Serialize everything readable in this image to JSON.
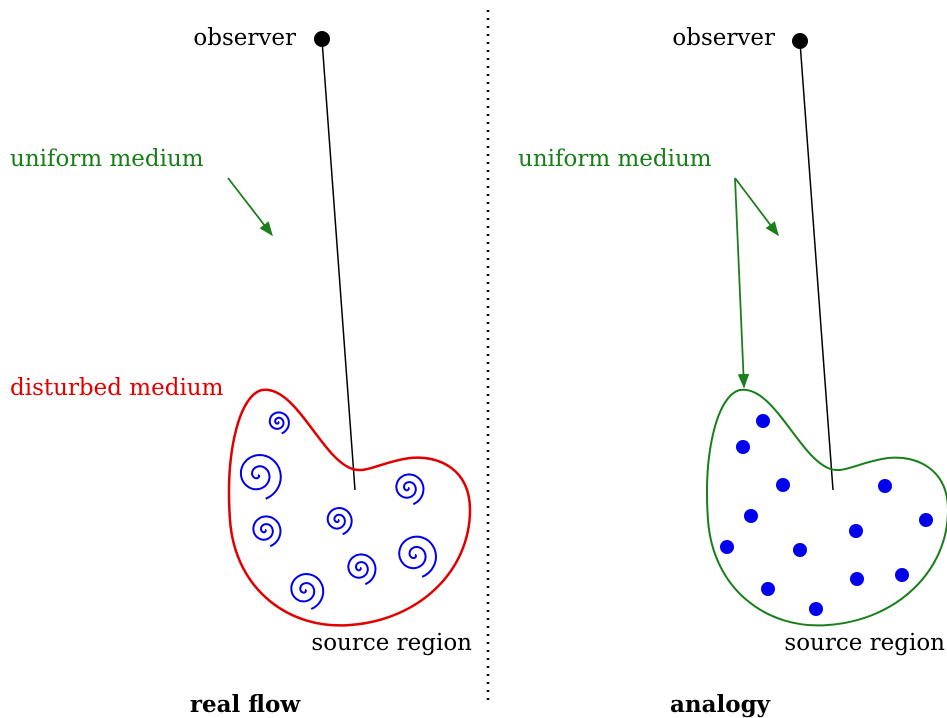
{
  "left": {
    "observer": "observer",
    "medium": "uniform medium",
    "disturbed": "disturbed medium",
    "source": "source region",
    "caption": "real flow"
  },
  "right": {
    "observer": "observer",
    "medium": "uniform medium",
    "source": "source region",
    "caption": "analogy"
  }
}
